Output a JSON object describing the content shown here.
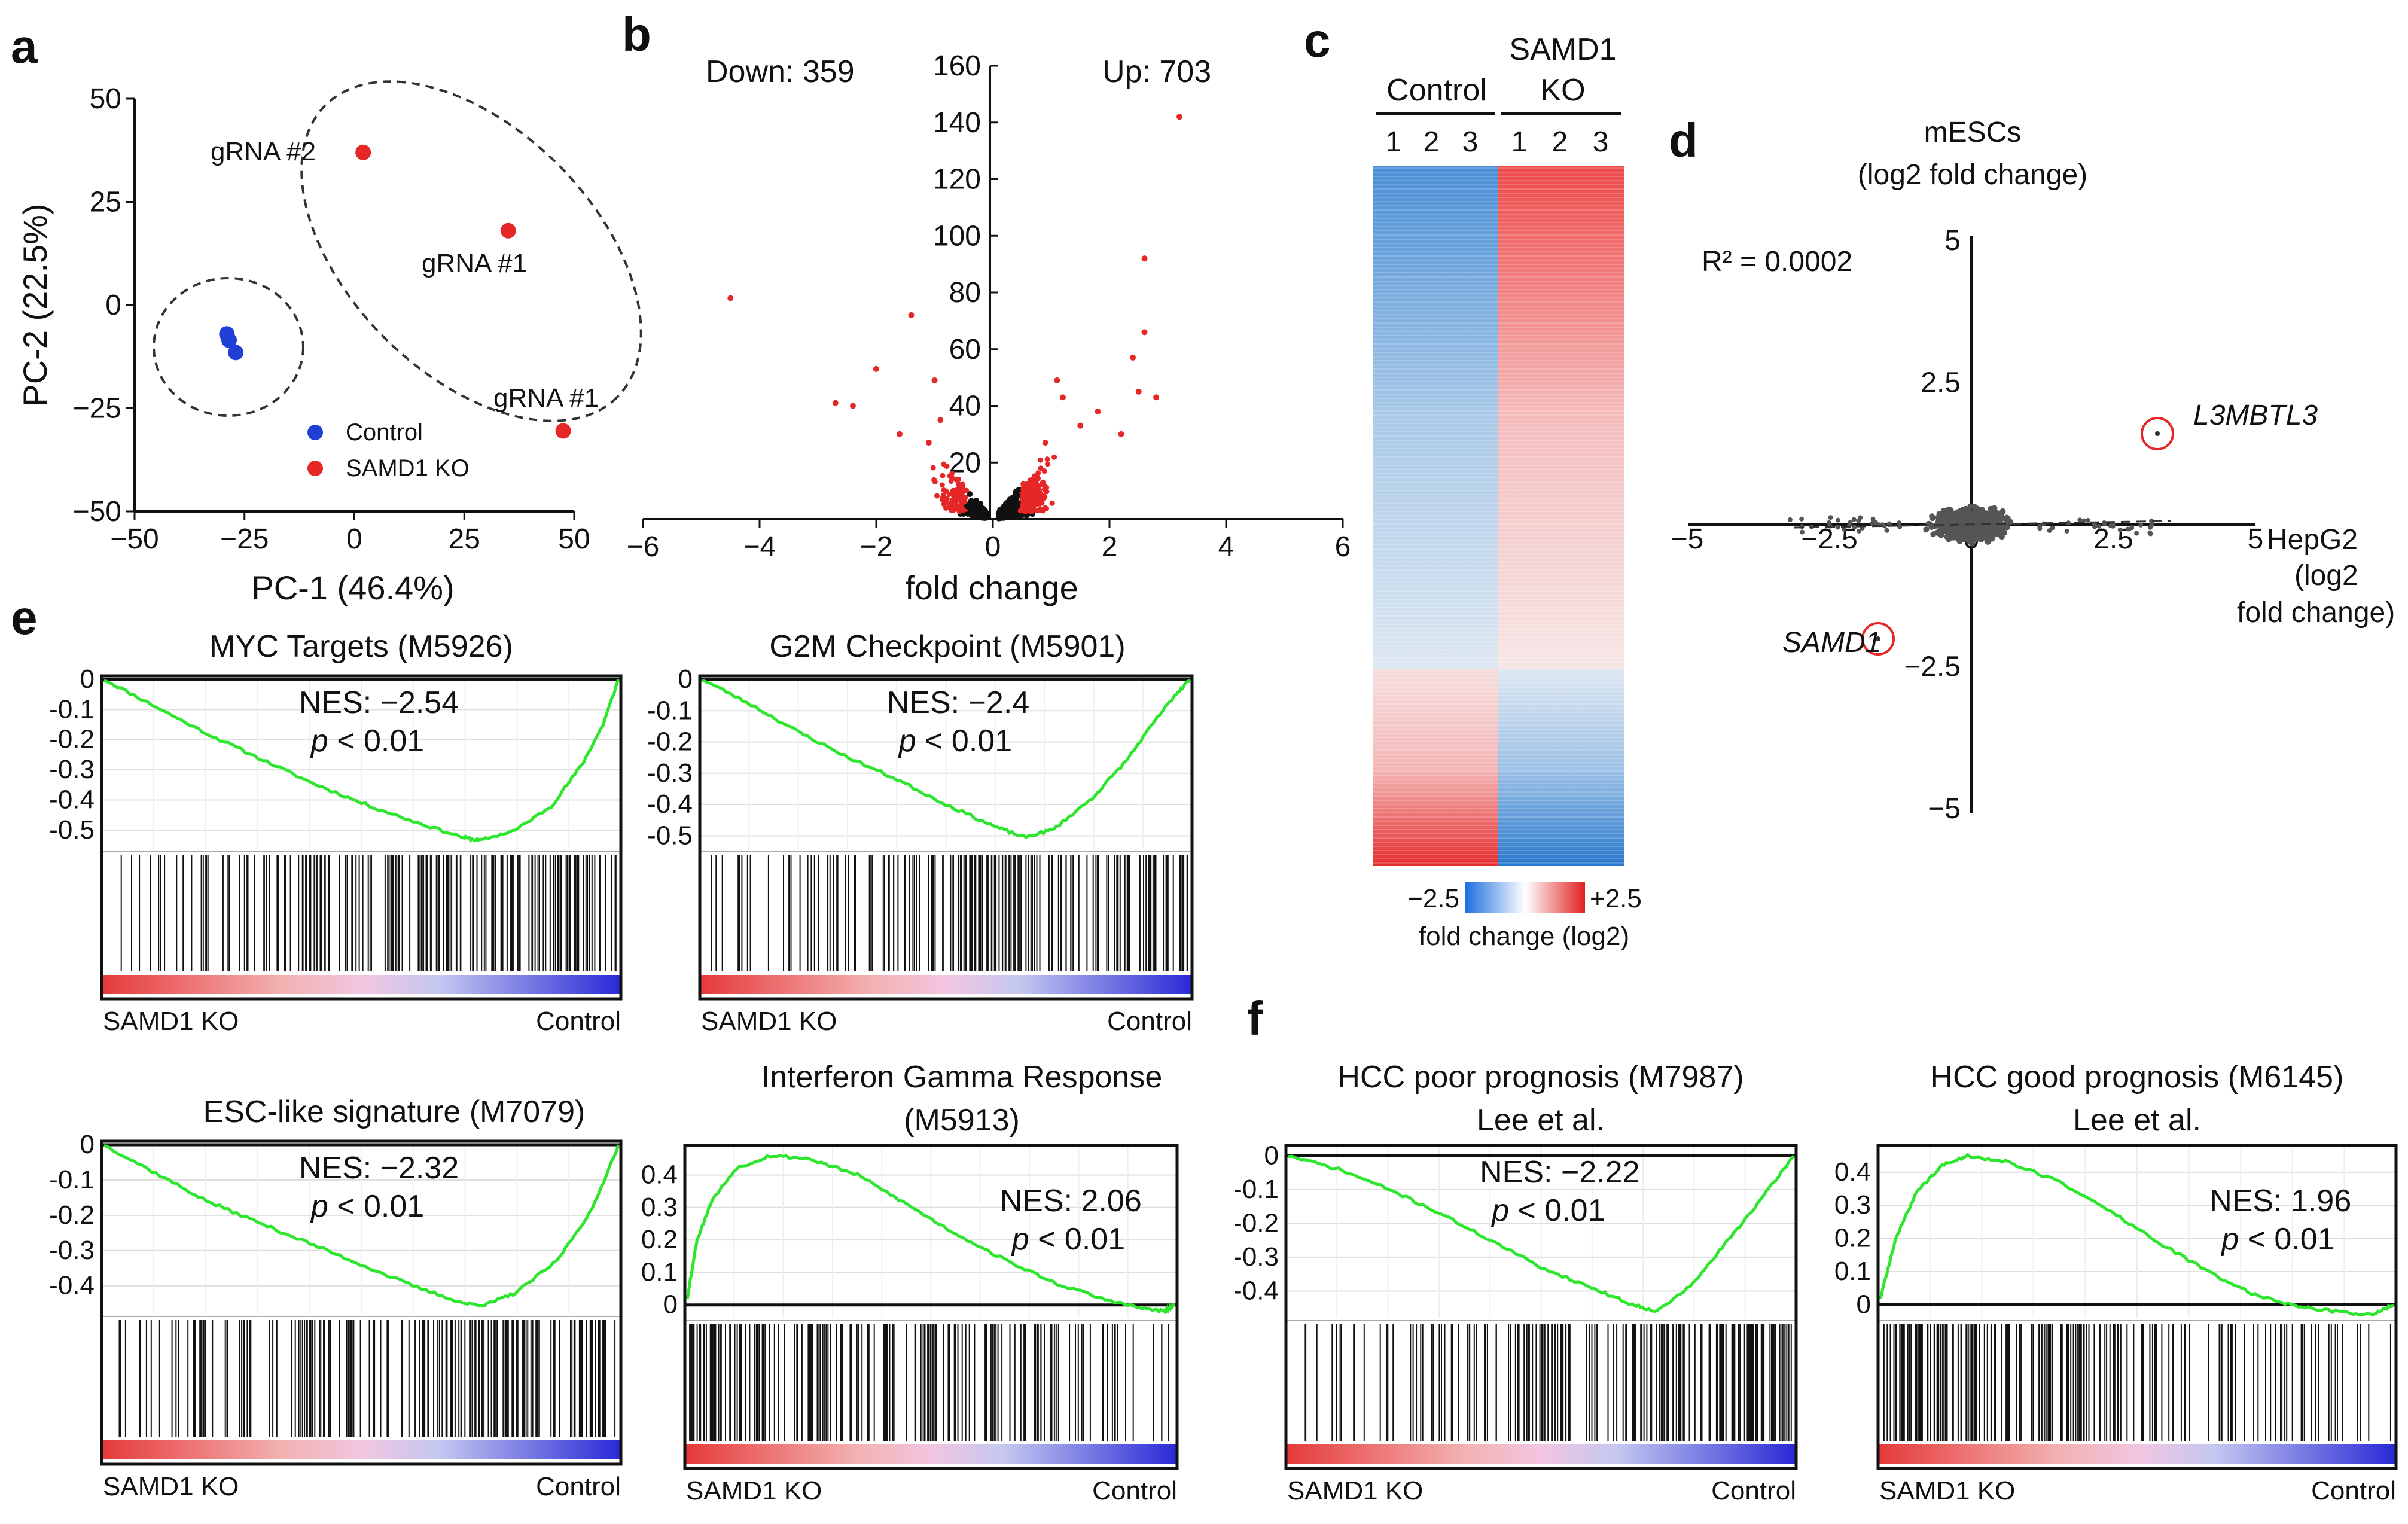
{
  "panel_labels": {
    "a": "a",
    "b": "b",
    "c": "c",
    "d": "d",
    "e": "e",
    "f": "f"
  },
  "colors": {
    "control": "#1f3fd6",
    "ko": "#e62727",
    "gsea_curve": "#2ee62e",
    "scatter": "#555555"
  },
  "chart_data": [
    {
      "id": "a",
      "type": "scatter",
      "xlabel": "PC-1 (46.4%)",
      "ylabel": "PC-2 (22.5%)",
      "xlim": [
        -50,
        50
      ],
      "ylim": [
        -50,
        50
      ],
      "xticks": [
        "−50",
        "−25",
        "0",
        "25",
        "50"
      ],
      "yticks": [
        "50",
        "25",
        "0",
        "−25",
        "−50"
      ],
      "series": [
        {
          "name": "Control",
          "points": [
            [
              -29,
              -7
            ],
            [
              -28.5,
              -8.5
            ],
            [
              -27,
              -11.5
            ]
          ]
        },
        {
          "name": "SAMD1 KO",
          "points": [
            [
              2,
              37
            ],
            [
              35,
              18
            ],
            [
              47.5,
              -30.5
            ]
          ]
        }
      ],
      "point_labels": [
        "gRNA #2",
        "gRNA #1",
        "gRNA #1"
      ],
      "legend": [
        "Control",
        "SAMD1 KO"
      ]
    },
    {
      "id": "b",
      "type": "scatter",
      "xlabel": "fold change",
      "xlim": [
        -6,
        6
      ],
      "ylim": [
        0,
        160
      ],
      "xticks": [
        "−6",
        "−4",
        "−2",
        "0",
        "2",
        "4",
        "6"
      ],
      "yticks": [
        "160",
        "140",
        "120",
        "100",
        "80",
        "60",
        "40",
        "20"
      ],
      "down_label": "Down: 359",
      "up_label": "Up: 703",
      "highlight_points": [
        [
          -4.5,
          78
        ],
        [
          -1.4,
          72
        ],
        [
          -2.0,
          53
        ],
        [
          -2.7,
          41
        ],
        [
          -2.4,
          40
        ],
        [
          -1.0,
          49
        ],
        [
          -0.9,
          35
        ],
        [
          -1.6,
          30
        ],
        [
          -1.1,
          27
        ],
        [
          1.1,
          49
        ],
        [
          1.2,
          43
        ],
        [
          2.6,
          66
        ],
        [
          2.6,
          92
        ],
        [
          3.2,
          142
        ],
        [
          2.8,
          43
        ],
        [
          2.5,
          45
        ],
        [
          2.4,
          57
        ],
        [
          1.8,
          38
        ],
        [
          1.5,
          33
        ],
        [
          0.9,
          27
        ],
        [
          2.2,
          30
        ]
      ]
    },
    {
      "id": "c",
      "type": "heatmap",
      "group_labels": [
        "Control",
        "SAMD1",
        "KO"
      ],
      "columns": [
        "1",
        "2",
        "3",
        "1",
        "2",
        "3"
      ],
      "scale_min": "−2.5",
      "scale_max": "+2.5",
      "scale_title": "fold change (log2)",
      "rows_split_fraction": 0.58
    },
    {
      "id": "d",
      "type": "scatter",
      "title_line1": "mESCs",
      "title_line2": "(log2 fold change)",
      "xlabel_line1": "HepG2",
      "xlabel_line2": "(log2",
      "xlabel_line3": "fold change)",
      "r2": "R² = 0.0002",
      "xlim": [
        -5,
        5
      ],
      "ylim": [
        -5,
        5
      ],
      "xticks": [
        "−5",
        "−2.5",
        "0",
        "2.5",
        "5"
      ],
      "yticks": [
        "5",
        "2.5",
        "−2.5",
        "−5"
      ],
      "highlight": [
        {
          "gene": "L3MBTL3",
          "x": 3.3,
          "y": 1.7
        },
        {
          "gene": "SAMD1",
          "x": -2.1,
          "y": -2.0
        }
      ]
    }
  ],
  "gsea": [
    {
      "id": "myc",
      "title": "MYC Targets (M5926)",
      "title2": "",
      "nes": "NES: −2.54",
      "p_prefix": "p",
      "p_suffix": " < 0.01",
      "left": "SAMD1 KO",
      "right": "Control",
      "ymin": -0.55,
      "ymax": 0.0,
      "yticks": [
        "0",
        "-0.1",
        "-0.2",
        "-0.3",
        "-0.4",
        "-0.5"
      ],
      "ytick_values": [
        0,
        -0.1,
        -0.2,
        -0.3,
        -0.4,
        -0.5
      ],
      "curve": [
        [
          0,
          0
        ],
        [
          0.1,
          -0.09
        ],
        [
          0.2,
          -0.18
        ],
        [
          0.3,
          -0.26
        ],
        [
          0.4,
          -0.34
        ],
        [
          0.5,
          -0.41
        ],
        [
          0.6,
          -0.47
        ],
        [
          0.7,
          -0.525
        ],
        [
          0.73,
          -0.535
        ],
        [
          0.8,
          -0.5
        ],
        [
          0.87,
          -0.42
        ],
        [
          0.93,
          -0.28
        ],
        [
          0.97,
          -0.15
        ],
        [
          1.0,
          0
        ]
      ],
      "hits_seed": 11
    },
    {
      "id": "g2m",
      "title": "G2M Checkpoint (M5901)",
      "title2": "",
      "nes": "NES: −2.4",
      "p_prefix": "p",
      "p_suffix": " < 0.01",
      "left": "SAMD1 KO",
      "right": "Control",
      "ymin": -0.53,
      "ymax": 0.0,
      "yticks": [
        "0",
        "-0.1",
        "-0.2",
        "-0.3",
        "-0.4",
        "-0.5"
      ],
      "ytick_values": [
        0,
        -0.1,
        -0.2,
        -0.3,
        -0.4,
        -0.5
      ],
      "curve": [
        [
          0,
          0
        ],
        [
          0.1,
          -0.08
        ],
        [
          0.2,
          -0.17
        ],
        [
          0.3,
          -0.25
        ],
        [
          0.4,
          -0.32
        ],
        [
          0.5,
          -0.4
        ],
        [
          0.6,
          -0.47
        ],
        [
          0.66,
          -0.505
        ],
        [
          0.72,
          -0.48
        ],
        [
          0.8,
          -0.38
        ],
        [
          0.87,
          -0.26
        ],
        [
          0.93,
          -0.13
        ],
        [
          0.97,
          -0.05
        ],
        [
          1.0,
          0
        ]
      ],
      "hits_seed": 23
    },
    {
      "id": "esc",
      "title": "ESC-like signature (M7079)",
      "title2": "",
      "nes": "NES: −2.32",
      "p_prefix": "p",
      "p_suffix": " < 0.01",
      "left": "SAMD1 KO",
      "right": "Control",
      "ymin": -0.47,
      "ymax": 0.0,
      "yticks": [
        "0",
        "-0.1",
        "-0.2",
        "-0.3",
        "-0.4"
      ],
      "ytick_values": [
        0,
        -0.1,
        -0.2,
        -0.3,
        -0.4
      ],
      "curve": [
        [
          0,
          0
        ],
        [
          0.1,
          -0.08
        ],
        [
          0.2,
          -0.16
        ],
        [
          0.3,
          -0.22
        ],
        [
          0.4,
          -0.28
        ],
        [
          0.5,
          -0.34
        ],
        [
          0.6,
          -0.4
        ],
        [
          0.7,
          -0.45
        ],
        [
          0.74,
          -0.455
        ],
        [
          0.8,
          -0.42
        ],
        [
          0.88,
          -0.33
        ],
        [
          0.95,
          -0.18
        ],
        [
          1.0,
          0
        ]
      ],
      "hits_seed": 37
    },
    {
      "id": "ifn",
      "title": "Interferon Gamma Response",
      "title2": "(M5913)",
      "nes": "NES: 2.06",
      "p_prefix": "p",
      "p_suffix": " < 0.01",
      "left": "SAMD1 KO",
      "right": "Control",
      "ymin": -0.03,
      "ymax": 0.48,
      "yticks": [
        "0.4",
        "0.3",
        "0.2",
        "0.1",
        "0"
      ],
      "ytick_values": [
        0.4,
        0.3,
        0.2,
        0.1,
        0
      ],
      "curve": [
        [
          0,
          0.02
        ],
        [
          0.02,
          0.2
        ],
        [
          0.05,
          0.32
        ],
        [
          0.1,
          0.42
        ],
        [
          0.17,
          0.46
        ],
        [
          0.25,
          0.45
        ],
        [
          0.35,
          0.4
        ],
        [
          0.45,
          0.31
        ],
        [
          0.55,
          0.22
        ],
        [
          0.65,
          0.14
        ],
        [
          0.75,
          0.07
        ],
        [
          0.85,
          0.02
        ],
        [
          0.93,
          -0.01
        ],
        [
          0.98,
          -0.02
        ],
        [
          1.0,
          0
        ]
      ],
      "hits_seed": 53
    },
    {
      "id": "poor",
      "title": "HCC poor prognosis  (M7987)",
      "title2": "Lee et al.",
      "nes": "NES: −2.22",
      "p_prefix": "p",
      "p_suffix": " < 0.01",
      "left": "SAMD1 KO",
      "right": "Control",
      "ymin": -0.47,
      "ymax": 0.02,
      "yticks": [
        "0",
        "-0.1",
        "-0.2",
        "-0.3",
        "-0.4"
      ],
      "ytick_values": [
        0,
        -0.1,
        -0.2,
        -0.3,
        -0.4
      ],
      "curve": [
        [
          0,
          0
        ],
        [
          0.1,
          -0.04
        ],
        [
          0.2,
          -0.1
        ],
        [
          0.3,
          -0.17
        ],
        [
          0.4,
          -0.25
        ],
        [
          0.5,
          -0.33
        ],
        [
          0.6,
          -0.39
        ],
        [
          0.68,
          -0.44
        ],
        [
          0.73,
          -0.46
        ],
        [
          0.8,
          -0.38
        ],
        [
          0.87,
          -0.25
        ],
        [
          0.94,
          -0.12
        ],
        [
          1.0,
          0
        ]
      ],
      "hits_seed": 71
    },
    {
      "id": "good",
      "title": "HCC good prognosis  (M6145)",
      "title2": "Lee et al.",
      "nes": "NES: 1.96",
      "p_prefix": "p",
      "p_suffix": " < 0.01",
      "left": "SAMD1 KO",
      "right": "Control",
      "ymin": -0.03,
      "ymax": 0.47,
      "yticks": [
        "0.4",
        "0.3",
        "0.2",
        "0.1",
        "0"
      ],
      "ytick_values": [
        0.4,
        0.3,
        0.2,
        0.1,
        0
      ],
      "curve": [
        [
          0,
          0.02
        ],
        [
          0.03,
          0.2
        ],
        [
          0.07,
          0.34
        ],
        [
          0.12,
          0.42
        ],
        [
          0.17,
          0.45
        ],
        [
          0.25,
          0.43
        ],
        [
          0.35,
          0.37
        ],
        [
          0.45,
          0.28
        ],
        [
          0.55,
          0.18
        ],
        [
          0.65,
          0.09
        ],
        [
          0.73,
          0.03
        ],
        [
          0.8,
          0.0
        ],
        [
          0.88,
          -0.02
        ],
        [
          0.96,
          -0.03
        ],
        [
          1.0,
          0
        ]
      ],
      "hits_seed": 89
    }
  ]
}
